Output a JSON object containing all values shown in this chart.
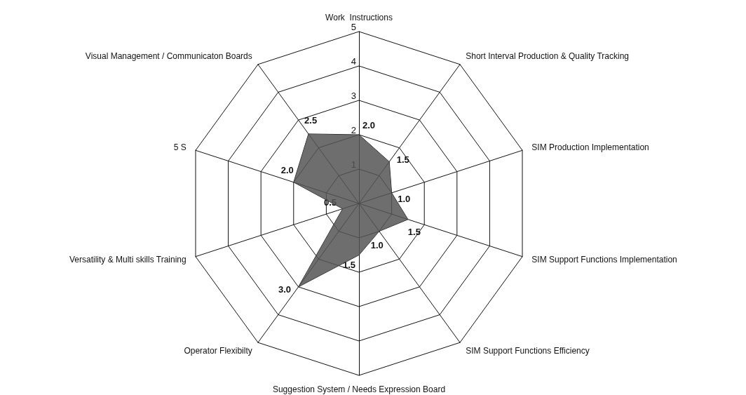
{
  "chart_data": {
    "type": "radar",
    "categories": [
      "Work  Instructions",
      "Short Interval Production & Quality Tracking",
      "SIM Production Implementation",
      "SIM Support Functions Implementation",
      "SIM Support Functions Efficiency",
      "Suggestion System / Needs Expression Board",
      "Operator Flexibilty",
      "Versatility & Multi skills Training",
      "5 S",
      "Visual Management / Communicaton Boards"
    ],
    "series": [
      {
        "color": "#555555",
        "values": [
          2.0,
          1.5,
          1.0,
          1.5,
          1.0,
          1.5,
          3.0,
          0.5,
          2.0,
          2.5
        ],
        "value_labels": [
          "2.0",
          "1.5",
          "1.0",
          "1.5",
          "1.0",
          "1.5",
          "3.0",
          "0.5",
          "2.0",
          "2.5"
        ]
      }
    ],
    "ylim": [
      0,
      5
    ],
    "yticks": [
      1,
      2,
      3,
      4,
      5
    ],
    "marker": "none"
  }
}
